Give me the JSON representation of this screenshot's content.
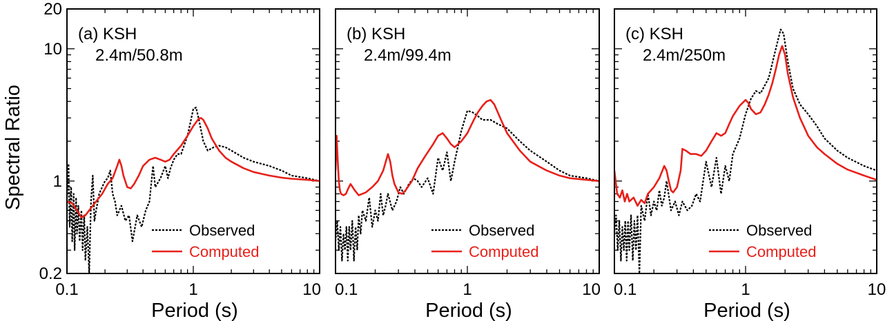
{
  "colors": {
    "observed": "#000000",
    "computed": "#e8201a"
  },
  "y_axis": {
    "label": "Spectral Ratio",
    "scale": "log",
    "ticks": [
      {
        "value": 0.2,
        "label": "0.2"
      },
      {
        "value": 1,
        "label": "1"
      },
      {
        "value": 10,
        "label": "10"
      },
      {
        "value": 20,
        "label": "20"
      }
    ]
  },
  "chart_data": [
    {
      "type": "line",
      "panel_label": "(a) KSH",
      "depth_label": "2.4m/50.8m",
      "xlabel": "Period (s)",
      "ylabel": "Spectral Ratio",
      "xscale": "log",
      "yscale": "log",
      "xlim": [
        0.1,
        10
      ],
      "ylim": [
        0.2,
        20
      ],
      "xticks": [
        {
          "value": 0.1,
          "label": "0.1"
        },
        {
          "value": 1,
          "label": "1"
        },
        {
          "value": 10,
          "label": "10"
        }
      ],
      "legend": {
        "position": "bottom-right",
        "entries": [
          "Observed",
          "Computed"
        ]
      },
      "series": [
        {
          "name": "Observed",
          "style": "dotted",
          "x": [
            0.1,
            0.103,
            0.105,
            0.108,
            0.11,
            0.113,
            0.115,
            0.118,
            0.12,
            0.123,
            0.126,
            0.13,
            0.133,
            0.137,
            0.14,
            0.145,
            0.15,
            0.155,
            0.16,
            0.165,
            0.17,
            0.18,
            0.19,
            0.2,
            0.21,
            0.22,
            0.23,
            0.24,
            0.25,
            0.27,
            0.29,
            0.31,
            0.33,
            0.36,
            0.39,
            0.42,
            0.45,
            0.48,
            0.5,
            0.55,
            0.6,
            0.63,
            0.66,
            0.7,
            0.75,
            0.8,
            0.9,
            1.0,
            1.05,
            1.1,
            1.2,
            1.3,
            1.45,
            1.6,
            1.8,
            2.0,
            2.5,
            3.0,
            4.0,
            5.0,
            6.0,
            8.0,
            10.0
          ],
          "y": [
            0.75,
            1.35,
            0.45,
            0.9,
            0.35,
            0.8,
            0.3,
            0.75,
            0.4,
            0.65,
            0.35,
            0.6,
            0.3,
            0.55,
            0.25,
            0.45,
            0.2,
            0.7,
            1.1,
            0.5,
            0.6,
            0.8,
            0.9,
            1.0,
            1.05,
            1.2,
            0.8,
            0.7,
            0.55,
            0.65,
            0.5,
            0.55,
            0.35,
            0.55,
            0.45,
            0.6,
            0.7,
            1.3,
            0.9,
            1.05,
            1.3,
            1.05,
            1.25,
            1.45,
            1.6,
            1.6,
            2.2,
            3.5,
            3.6,
            3.0,
            2.0,
            1.7,
            1.8,
            1.85,
            1.8,
            1.7,
            1.5,
            1.4,
            1.3,
            1.2,
            1.1,
            1.05,
            1.0
          ]
        },
        {
          "name": "Computed",
          "style": "solid",
          "x": [
            0.1,
            0.11,
            0.12,
            0.13,
            0.14,
            0.15,
            0.17,
            0.19,
            0.21,
            0.23,
            0.25,
            0.26,
            0.27,
            0.28,
            0.3,
            0.32,
            0.34,
            0.37,
            0.4,
            0.45,
            0.5,
            0.55,
            0.6,
            0.65,
            0.7,
            0.8,
            0.9,
            1.0,
            1.1,
            1.15,
            1.2,
            1.3,
            1.4,
            1.6,
            1.8,
            2.0,
            2.5,
            3.0,
            4.0,
            5.0,
            6.0,
            8.0,
            10.0
          ],
          "y": [
            0.7,
            0.68,
            0.6,
            0.53,
            0.55,
            0.6,
            0.7,
            0.8,
            0.95,
            1.05,
            1.3,
            1.45,
            1.3,
            1.1,
            0.9,
            0.88,
            0.95,
            1.1,
            1.3,
            1.45,
            1.5,
            1.45,
            1.4,
            1.45,
            1.6,
            1.85,
            2.2,
            2.6,
            2.95,
            3.0,
            2.9,
            2.5,
            2.1,
            1.7,
            1.5,
            1.4,
            1.25,
            1.17,
            1.1,
            1.06,
            1.04,
            1.02,
            1.0
          ]
        }
      ]
    },
    {
      "type": "line",
      "panel_label": "(b) KSH",
      "depth_label": "2.4m/99.4m",
      "xlabel": "Period (s)",
      "ylabel": "",
      "xscale": "log",
      "yscale": "log",
      "xlim": [
        0.1,
        10
      ],
      "ylim": [
        0.2,
        20
      ],
      "xticks": [
        {
          "value": 0.1,
          "label": "0.1"
        },
        {
          "value": 1,
          "label": "1"
        },
        {
          "value": 10,
          "label": "10"
        }
      ],
      "legend": {
        "position": "bottom-right",
        "entries": [
          "Observed",
          "Computed"
        ]
      },
      "series": [
        {
          "name": "Observed",
          "style": "dotted",
          "x": [
            0.1,
            0.103,
            0.106,
            0.109,
            0.112,
            0.115,
            0.118,
            0.121,
            0.124,
            0.127,
            0.13,
            0.134,
            0.138,
            0.142,
            0.146,
            0.15,
            0.155,
            0.16,
            0.17,
            0.18,
            0.19,
            0.2,
            0.21,
            0.22,
            0.23,
            0.24,
            0.25,
            0.27,
            0.29,
            0.31,
            0.33,
            0.36,
            0.39,
            0.42,
            0.45,
            0.5,
            0.55,
            0.6,
            0.65,
            0.7,
            0.75,
            0.8,
            0.9,
            1.0,
            1.1,
            1.2,
            1.3,
            1.5,
            1.7,
            2.0,
            2.5,
            3.0,
            4.0,
            5.0,
            6.0,
            8.0,
            10.0
          ],
          "y": [
            0.35,
            0.5,
            0.3,
            0.45,
            0.25,
            0.4,
            0.3,
            0.45,
            0.25,
            0.45,
            0.3,
            0.5,
            0.25,
            0.45,
            0.3,
            0.55,
            0.4,
            0.6,
            0.5,
            0.75,
            0.45,
            0.6,
            0.5,
            0.8,
            0.55,
            0.65,
            0.8,
            0.6,
            0.7,
            0.9,
            0.8,
            0.95,
            1.05,
            1.0,
            0.9,
            1.05,
            0.8,
            1.5,
            1.2,
            1.65,
            1.0,
            1.4,
            2.4,
            3.4,
            3.3,
            3.1,
            2.9,
            2.9,
            2.7,
            2.5,
            2.0,
            1.7,
            1.4,
            1.2,
            1.1,
            1.05,
            1.0
          ]
        },
        {
          "name": "Computed",
          "style": "solid",
          "x": [
            0.1,
            0.102,
            0.104,
            0.106,
            0.108,
            0.11,
            0.115,
            0.12,
            0.125,
            0.13,
            0.14,
            0.15,
            0.17,
            0.19,
            0.21,
            0.23,
            0.25,
            0.26,
            0.27,
            0.28,
            0.3,
            0.32,
            0.34,
            0.38,
            0.42,
            0.48,
            0.55,
            0.6,
            0.65,
            0.7,
            0.75,
            0.8,
            0.9,
            1.0,
            1.1,
            1.2,
            1.3,
            1.4,
            1.5,
            1.6,
            1.8,
            2.0,
            2.5,
            3.0,
            4.0,
            5.0,
            6.0,
            8.0,
            10.0
          ],
          "y": [
            1.2,
            2.2,
            1.4,
            1.0,
            0.85,
            0.8,
            0.78,
            0.8,
            0.88,
            0.95,
            0.85,
            0.78,
            0.82,
            0.9,
            1.0,
            1.2,
            1.6,
            1.4,
            1.1,
            0.95,
            0.82,
            0.8,
            0.85,
            1.0,
            1.25,
            1.55,
            1.9,
            2.2,
            2.3,
            2.1,
            1.9,
            1.8,
            2.0,
            2.3,
            2.8,
            3.3,
            3.7,
            4.0,
            4.1,
            3.8,
            2.9,
            2.3,
            1.7,
            1.4,
            1.2,
            1.1,
            1.05,
            1.02,
            1.0
          ]
        }
      ]
    },
    {
      "type": "line",
      "panel_label": "(c) KSH",
      "depth_label": "2.4m/250m",
      "xlabel": "Period (s)",
      "ylabel": "",
      "xscale": "log",
      "yscale": "log",
      "xlim": [
        0.1,
        10
      ],
      "ylim": [
        0.2,
        20
      ],
      "xticks": [
        {
          "value": 0.1,
          "label": "0.1"
        },
        {
          "value": 1,
          "label": "1"
        },
        {
          "value": 10,
          "label": "10"
        }
      ],
      "legend": {
        "position": "bottom-right",
        "entries": [
          "Observed",
          "Computed"
        ]
      },
      "series": [
        {
          "name": "Observed",
          "style": "dotted",
          "x": [
            0.1,
            0.103,
            0.106,
            0.109,
            0.112,
            0.115,
            0.118,
            0.121,
            0.124,
            0.127,
            0.13,
            0.134,
            0.138,
            0.142,
            0.146,
            0.15,
            0.155,
            0.16,
            0.17,
            0.18,
            0.19,
            0.2,
            0.21,
            0.22,
            0.23,
            0.24,
            0.25,
            0.27,
            0.29,
            0.31,
            0.33,
            0.36,
            0.39,
            0.42,
            0.45,
            0.5,
            0.55,
            0.6,
            0.65,
            0.7,
            0.75,
            0.8,
            0.9,
            1.0,
            1.1,
            1.2,
            1.3,
            1.5,
            1.7,
            1.85,
            1.95,
            2.1,
            2.3,
            2.6,
            3.0,
            3.5,
            4.0,
            5.0,
            6.0,
            8.0,
            10.0
          ],
          "y": [
            0.4,
            0.55,
            0.3,
            0.5,
            0.25,
            0.45,
            0.3,
            0.5,
            0.25,
            0.5,
            0.3,
            0.55,
            0.25,
            0.5,
            0.3,
            0.55,
            0.2,
            0.65,
            0.5,
            0.8,
            0.55,
            0.7,
            0.6,
            0.85,
            0.65,
            0.75,
            1.0,
            0.6,
            0.7,
            0.55,
            0.7,
            0.6,
            0.65,
            0.8,
            0.7,
            1.4,
            0.9,
            1.5,
            0.8,
            1.3,
            1.0,
            1.6,
            2.1,
            3.2,
            4.2,
            4.8,
            4.6,
            6.0,
            10.0,
            14.0,
            13.0,
            8.0,
            5.0,
            3.8,
            3.2,
            2.6,
            2.1,
            1.7,
            1.5,
            1.3,
            1.2
          ]
        },
        {
          "name": "Computed",
          "style": "solid",
          "x": [
            0.1,
            0.105,
            0.11,
            0.115,
            0.12,
            0.125,
            0.13,
            0.14,
            0.15,
            0.16,
            0.17,
            0.18,
            0.2,
            0.22,
            0.24,
            0.25,
            0.26,
            0.27,
            0.28,
            0.3,
            0.32,
            0.33,
            0.35,
            0.38,
            0.42,
            0.46,
            0.5,
            0.55,
            0.6,
            0.65,
            0.7,
            0.75,
            0.8,
            0.9,
            1.0,
            1.05,
            1.1,
            1.2,
            1.3,
            1.4,
            1.5,
            1.6,
            1.7,
            1.8,
            1.9,
            2.0,
            2.1,
            2.3,
            2.6,
            3.0,
            3.5,
            4.0,
            5.0,
            6.0,
            8.0,
            10.0
          ],
          "y": [
            1.2,
            0.8,
            0.75,
            0.85,
            0.7,
            0.8,
            0.7,
            0.75,
            0.65,
            0.72,
            0.68,
            0.8,
            0.9,
            1.05,
            1.3,
            1.2,
            1.0,
            0.85,
            0.82,
            0.9,
            1.2,
            1.75,
            1.7,
            1.6,
            1.6,
            1.55,
            1.7,
            2.0,
            2.3,
            2.2,
            2.3,
            2.7,
            3.1,
            3.7,
            4.1,
            3.9,
            3.5,
            3.2,
            3.3,
            3.8,
            4.5,
            5.5,
            7.0,
            9.0,
            10.5,
            9.0,
            6.5,
            4.3,
            3.0,
            2.2,
            1.8,
            1.6,
            1.35,
            1.22,
            1.1,
            1.02
          ]
        }
      ]
    }
  ]
}
